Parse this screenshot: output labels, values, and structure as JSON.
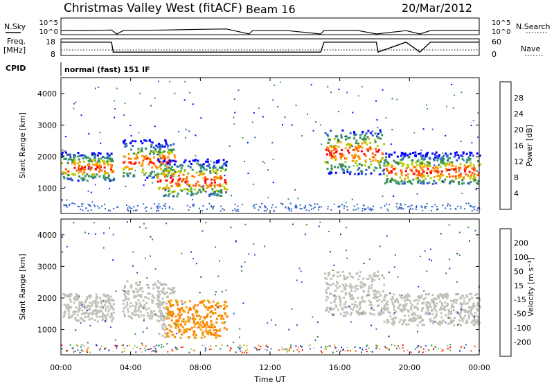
{
  "header": {
    "title": "Christmas Valley West (fitACF)",
    "beam": "Beam 16",
    "date": "20/Mar/2012"
  },
  "labels": {
    "nsky": "N.Sky",
    "nsearch": "N.Search",
    "freq": "Freq.",
    "freq_unit": "[MHz]",
    "nave": "Nave",
    "cpid": "CPID",
    "cpid_value": "normal (fast) 151 IF"
  },
  "colors": {
    "power": [
      "#0000ff",
      "#2e5fc7",
      "#3a9a6a",
      "#3a8a50",
      "#b0d000",
      "#ff9a00",
      "#ff6000",
      "#ff0000"
    ],
    "velocity": [
      "#1e2eb0",
      "#3060c8",
      "#2a8a50",
      "#6ad040",
      "#c0c0b8",
      "#f0a010",
      "#ff8000",
      "#ff4000",
      "#ff0000"
    ]
  },
  "chart_data": [
    {
      "type": "line",
      "panel": "noise",
      "title": "",
      "ylabel_left": "N.Sky",
      "ylabel_right": "N.Search",
      "ticks_left": [
        "10^5",
        "10^0"
      ],
      "ticks_right": [
        "10^5",
        "10^0"
      ],
      "x_hours": [
        0,
        2,
        2.9,
        3.2,
        3.6,
        4,
        6,
        8,
        9.5,
        10.8,
        11,
        13,
        14.9,
        15.1,
        17,
        18.1,
        19.8,
        20.6,
        21.2,
        22,
        24
      ],
      "values": [
        1.2,
        1.3,
        1.4,
        0.2,
        1.3,
        1.3,
        1.4,
        1.6,
        1.7,
        0.2,
        1.2,
        1.2,
        0.2,
        1.3,
        1.3,
        0.2,
        1.2,
        0.2,
        1.2,
        1.3,
        1.3
      ]
    },
    {
      "type": "line",
      "panel": "frequency",
      "ylabel_left": "Freq. [MHz]",
      "ylabel_right": "Nave",
      "ticks_left": [
        "18",
        "8"
      ],
      "ticks_right": [
        "60",
        "0"
      ],
      "x_hours": [
        0,
        2.9,
        3,
        5,
        10.8,
        11,
        14.9,
        15.1,
        18.1,
        18.2,
        19.8,
        20.6,
        21.2,
        24
      ],
      "freq_mhz": [
        16,
        16,
        10,
        10,
        10,
        10,
        10,
        16,
        16,
        10,
        16,
        10,
        16,
        16
      ],
      "nave_x_hours": [
        0,
        24
      ],
      "nave": [
        20,
        20
      ]
    },
    {
      "type": "heatmap",
      "panel": "power",
      "ylabel": "Slant Range [km]",
      "yticks": [
        "1000",
        "2000",
        "3000",
        "4000"
      ],
      "ylim": [
        200,
        4500
      ],
      "colorbar_label": "Power [dB]",
      "colorbar_ticks": [
        "4",
        "8",
        "12",
        "16",
        "20",
        "24",
        "28"
      ],
      "clim": [
        0,
        32
      ]
    },
    {
      "type": "heatmap",
      "panel": "velocity",
      "ylabel": "Slant Range [km]",
      "yticks": [
        "1000",
        "2000",
        "3000",
        "4000"
      ],
      "ylim": [
        200,
        4500
      ],
      "colorbar_label": "Velocity [m s⁻¹]",
      "colorbar_ticks": [
        "-200",
        "-100",
        "-50",
        "-15",
        "15",
        "50",
        "100",
        "200"
      ],
      "clim": [
        -250,
        250
      ]
    }
  ],
  "xaxis": {
    "label": "Time UT",
    "ticks": [
      "00:00",
      "04:00",
      "08:00",
      "12:00",
      "16:00",
      "20:00",
      "00:00"
    ],
    "xlim_hours": [
      0,
      24
    ]
  },
  "gaps_hours": [
    [
      3.3,
      3.45
    ],
    [
      10.8,
      10.95
    ],
    [
      14.95,
      15.1
    ]
  ]
}
